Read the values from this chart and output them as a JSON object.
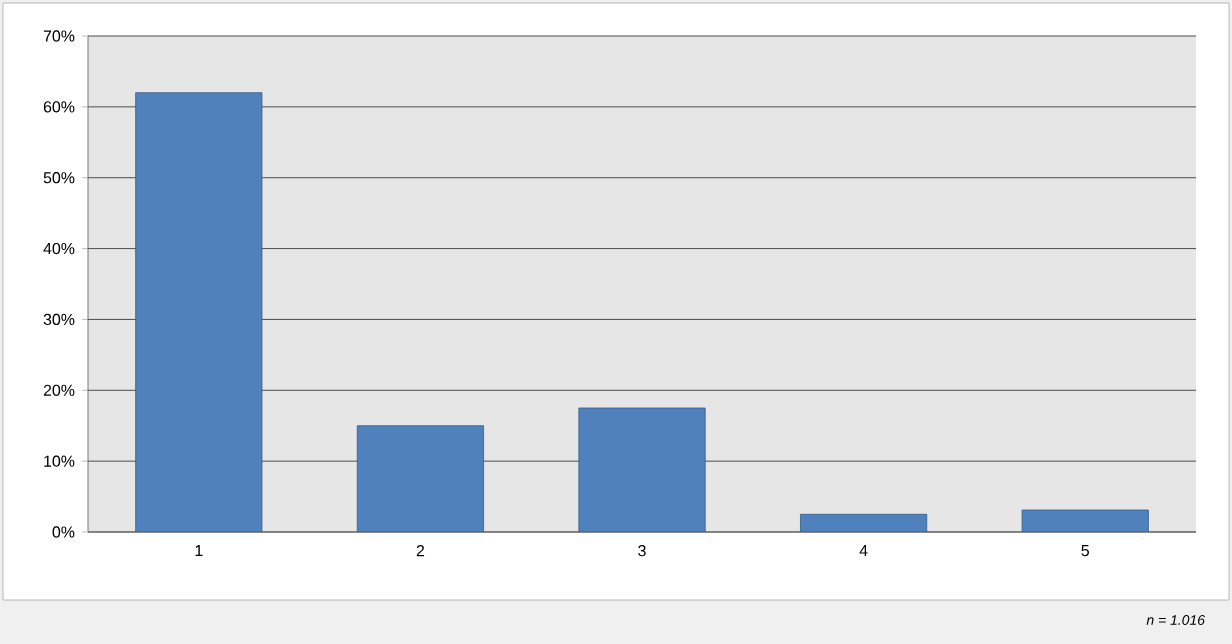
{
  "chart_data": {
    "type": "bar",
    "categories": [
      "1",
      "2",
      "3",
      "4",
      "5"
    ],
    "values": [
      62,
      15,
      17.5,
      2.5,
      3.1
    ],
    "color": "#4f81bd",
    "ylim": [
      0,
      70
    ],
    "yticks": [
      {
        "value": 0,
        "label": "0%"
      },
      {
        "value": 10,
        "label": "10%"
      },
      {
        "value": 20,
        "label": "20%"
      },
      {
        "value": 30,
        "label": "30%"
      },
      {
        "value": 40,
        "label": "40%"
      },
      {
        "value": 50,
        "label": "50%"
      },
      {
        "value": 60,
        "label": "60%"
      },
      {
        "value": 70,
        "label": "70%"
      }
    ],
    "grid": "y",
    "annotations": [
      "n = 1.016"
    ]
  }
}
